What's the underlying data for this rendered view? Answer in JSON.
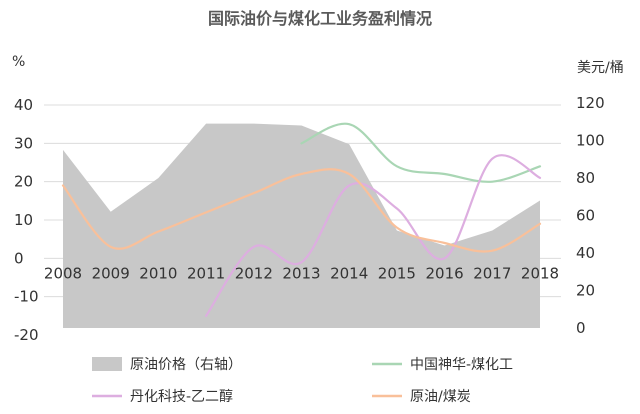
{
  "chart_data": {
    "type": "line",
    "title": "国际油价与煤化工业务盈利情况",
    "left_unit": "%",
    "right_unit": "美元/桶",
    "categories": [
      "2008",
      "2009",
      "2010",
      "2011",
      "2012",
      "2013",
      "2014",
      "2015",
      "2016",
      "2017",
      "2018"
    ],
    "left_axis": {
      "ylim": [
        -20,
        40
      ],
      "ticks": [
        -20,
        -10,
        0,
        10,
        20,
        30,
        40
      ]
    },
    "right_axis": {
      "ylim": [
        0,
        120
      ],
      "ticks": [
        0,
        20,
        40,
        60,
        80,
        100,
        120
      ]
    },
    "grid": true,
    "legend_placement": "bottom",
    "series": [
      {
        "name": "原油价格（右轴）",
        "kind": "area",
        "axis": "right",
        "color": "#c8c8c8",
        "values": [
          95,
          62,
          80,
          109,
          109,
          108,
          98,
          52,
          44,
          52,
          68
        ]
      },
      {
        "name": "中国神华-煤化工",
        "kind": "line",
        "axis": "left",
        "color": "#a9d6b4",
        "values": [
          null,
          null,
          null,
          null,
          null,
          30,
          35,
          24,
          22,
          20,
          24
        ]
      },
      {
        "name": "丹化科技-乙二醇",
        "kind": "line",
        "axis": "left",
        "color": "#ddaee0",
        "values": [
          null,
          null,
          null,
          -15,
          3,
          -1,
          19,
          13,
          0,
          26,
          21
        ]
      },
      {
        "name": "原油/煤炭",
        "kind": "line",
        "axis": "left",
        "color": "#f9c09a",
        "values": [
          19,
          3,
          7,
          12,
          17,
          22,
          22,
          8,
          4,
          2,
          9
        ]
      }
    ]
  }
}
